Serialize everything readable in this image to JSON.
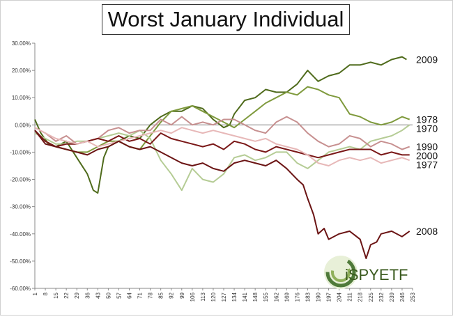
{
  "chart_data": {
    "type": "line",
    "title": "Worst January Individual",
    "xlabel": "",
    "ylabel": "",
    "ylim": [
      -60,
      30
    ],
    "yticks": [
      "30.00%",
      "20.00%",
      "10.00%",
      "0.00%",
      "-10.00%",
      "-20.00%",
      "-30.00%",
      "-40.00%",
      "-50.00%",
      "-60.00%"
    ],
    "ytick_values": [
      30,
      20,
      10,
      0,
      -10,
      -20,
      -30,
      -40,
      -50,
      -60
    ],
    "xlim": [
      1,
      253
    ],
    "xticks": [
      "1",
      "8",
      "15",
      "22",
      "29",
      "36",
      "43",
      "50",
      "57",
      "64",
      "71",
      "78",
      "85",
      "92",
      "99",
      "106",
      "113",
      "120",
      "127",
      "134",
      "141",
      "148",
      "155",
      "162",
      "169",
      "176",
      "183",
      "190",
      "197",
      "204",
      "211",
      "218",
      "225",
      "232",
      "239",
      "246",
      "253"
    ],
    "xtick_values": [
      1,
      8,
      15,
      22,
      29,
      36,
      43,
      50,
      57,
      64,
      71,
      78,
      85,
      92,
      99,
      106,
      113,
      120,
      127,
      134,
      141,
      148,
      155,
      162,
      169,
      176,
      183,
      190,
      197,
      204,
      211,
      218,
      225,
      232,
      239,
      246,
      253
    ],
    "grid": false,
    "series": [
      {
        "name": "2009",
        "color": "#4f6b1c",
        "x": [
          1,
          5,
          10,
          15,
          22,
          29,
          36,
          40,
          43,
          47,
          50,
          57,
          64,
          71,
          78,
          85,
          92,
          99,
          106,
          113,
          120,
          127,
          131,
          134,
          141,
          148,
          155,
          162,
          169,
          176,
          183,
          190,
          197,
          204,
          211,
          218,
          225,
          232,
          239,
          246,
          249
        ],
        "y": [
          2,
          -3,
          -7,
          -8,
          -6,
          -12,
          -18,
          -24,
          -25,
          -12,
          -8,
          -6,
          -4,
          -5,
          0,
          3,
          5,
          5,
          7,
          6,
          2,
          -1,
          0,
          4,
          9,
          10,
          13,
          12,
          12,
          15,
          20,
          16,
          18,
          19,
          22,
          22,
          23,
          22,
          24,
          25,
          24
        ]
      },
      {
        "name": "1978",
        "color": "#7f9a3d",
        "x": [
          1,
          8,
          15,
          22,
          29,
          36,
          43,
          50,
          57,
          64,
          71,
          78,
          85,
          92,
          99,
          106,
          113,
          120,
          127,
          134,
          141,
          148,
          155,
          162,
          169,
          176,
          183,
          190,
          197,
          204,
          211,
          218,
          225,
          232,
          239,
          246,
          251
        ],
        "y": [
          -2,
          -6,
          -8,
          -9,
          -10,
          -10,
          -8,
          -6,
          -6,
          -8,
          -9,
          -4,
          1,
          5,
          6,
          7,
          5,
          3,
          1,
          -1,
          2,
          5,
          8,
          10,
          12,
          11,
          14,
          13,
          11,
          10,
          4,
          3,
          1,
          0,
          1,
          3,
          2
        ]
      },
      {
        "name": "1970",
        "color": "#b5cc95",
        "x": [
          1,
          8,
          15,
          22,
          29,
          36,
          43,
          50,
          57,
          64,
          71,
          78,
          85,
          92,
          99,
          106,
          113,
          120,
          127,
          134,
          141,
          148,
          155,
          162,
          169,
          176,
          183,
          190,
          197,
          204,
          211,
          218,
          225,
          232,
          239,
          246,
          251
        ],
        "y": [
          -3,
          -5,
          -7,
          -7,
          -6,
          -6,
          -5,
          -4,
          -3,
          -4,
          -2,
          -5,
          -13,
          -18,
          -24,
          -16,
          -20,
          -21,
          -18,
          -12,
          -11,
          -13,
          -12,
          -10,
          -10,
          -14,
          -16,
          -13,
          -10,
          -9,
          -8,
          -9,
          -6,
          -5,
          -4,
          -2,
          0
        ]
      },
      {
        "name": "1990",
        "color": "#c79090",
        "x": [
          1,
          8,
          15,
          22,
          29,
          36,
          43,
          50,
          57,
          64,
          71,
          78,
          85,
          92,
          99,
          106,
          113,
          120,
          127,
          134,
          141,
          148,
          155,
          162,
          169,
          176,
          183,
          190,
          197,
          204,
          211,
          218,
          225,
          232,
          239,
          246,
          251
        ],
        "y": [
          -1,
          -3,
          -6,
          -4,
          -7,
          -6,
          -5,
          -2,
          -1,
          -3,
          -2,
          -2,
          2,
          0,
          3,
          0,
          1,
          0,
          2,
          2,
          0,
          -2,
          -3,
          1,
          3,
          1,
          -3,
          -6,
          -8,
          -7,
          -4,
          -5,
          -8,
          -6,
          -7,
          -9,
          -8
        ]
      },
      {
        "name": "2000",
        "color": "#7a1818",
        "x": [
          1,
          8,
          15,
          22,
          29,
          36,
          43,
          50,
          57,
          64,
          71,
          78,
          85,
          92,
          99,
          106,
          113,
          120,
          127,
          134,
          141,
          148,
          155,
          162,
          169,
          176,
          183,
          190,
          197,
          204,
          211,
          218,
          225,
          232,
          239,
          246,
          251
        ],
        "y": [
          -2,
          -6,
          -8,
          -7,
          -7,
          -6,
          -5,
          -6,
          -4,
          -6,
          -5,
          -7,
          -3,
          -5,
          -6,
          -7,
          -8,
          -7,
          -9,
          -6,
          -7,
          -9,
          -10,
          -8,
          -9,
          -10,
          -11,
          -12,
          -11,
          -10,
          -9,
          -9,
          -9,
          -11,
          -10,
          -11,
          -11
        ]
      },
      {
        "name": "1977",
        "color": "#e7b8b8",
        "x": [
          1,
          8,
          15,
          22,
          29,
          36,
          43,
          50,
          57,
          64,
          71,
          78,
          85,
          92,
          99,
          106,
          113,
          120,
          127,
          134,
          141,
          148,
          155,
          162,
          169,
          176,
          183,
          190,
          197,
          204,
          211,
          218,
          225,
          232,
          239,
          246,
          251
        ],
        "y": [
          -1,
          -3,
          -5,
          -6,
          -7,
          -6,
          -8,
          -7,
          -6,
          -5,
          -4,
          -3,
          -2,
          -3,
          -1,
          -2,
          -3,
          -2,
          -3,
          -4,
          -5,
          -6,
          -5,
          -7,
          -8,
          -9,
          -11,
          -14,
          -15,
          -13,
          -12,
          -13,
          -12,
          -14,
          -13,
          -12,
          -13
        ]
      },
      {
        "name": "2008",
        "color": "#6b1414",
        "x": [
          1,
          8,
          15,
          22,
          29,
          36,
          43,
          50,
          57,
          64,
          71,
          78,
          85,
          92,
          99,
          106,
          113,
          120,
          127,
          134,
          141,
          148,
          155,
          162,
          169,
          176,
          180,
          183,
          187,
          190,
          194,
          197,
          204,
          211,
          218,
          222,
          225,
          229,
          232,
          239,
          246,
          251
        ],
        "y": [
          -2,
          -7,
          -8,
          -9,
          -10,
          -11,
          -9,
          -8,
          -6,
          -8,
          -9,
          -8,
          -10,
          -12,
          -14,
          -15,
          -14,
          -16,
          -17,
          -14,
          -13,
          -14,
          -15,
          -13,
          -16,
          -20,
          -22,
          -27,
          -33,
          -40,
          -38,
          -42,
          -40,
          -39,
          -42,
          -49,
          -44,
          -43,
          -40,
          -39,
          -41,
          -39
        ]
      }
    ],
    "logo": {
      "text": "iSPYETF"
    }
  }
}
